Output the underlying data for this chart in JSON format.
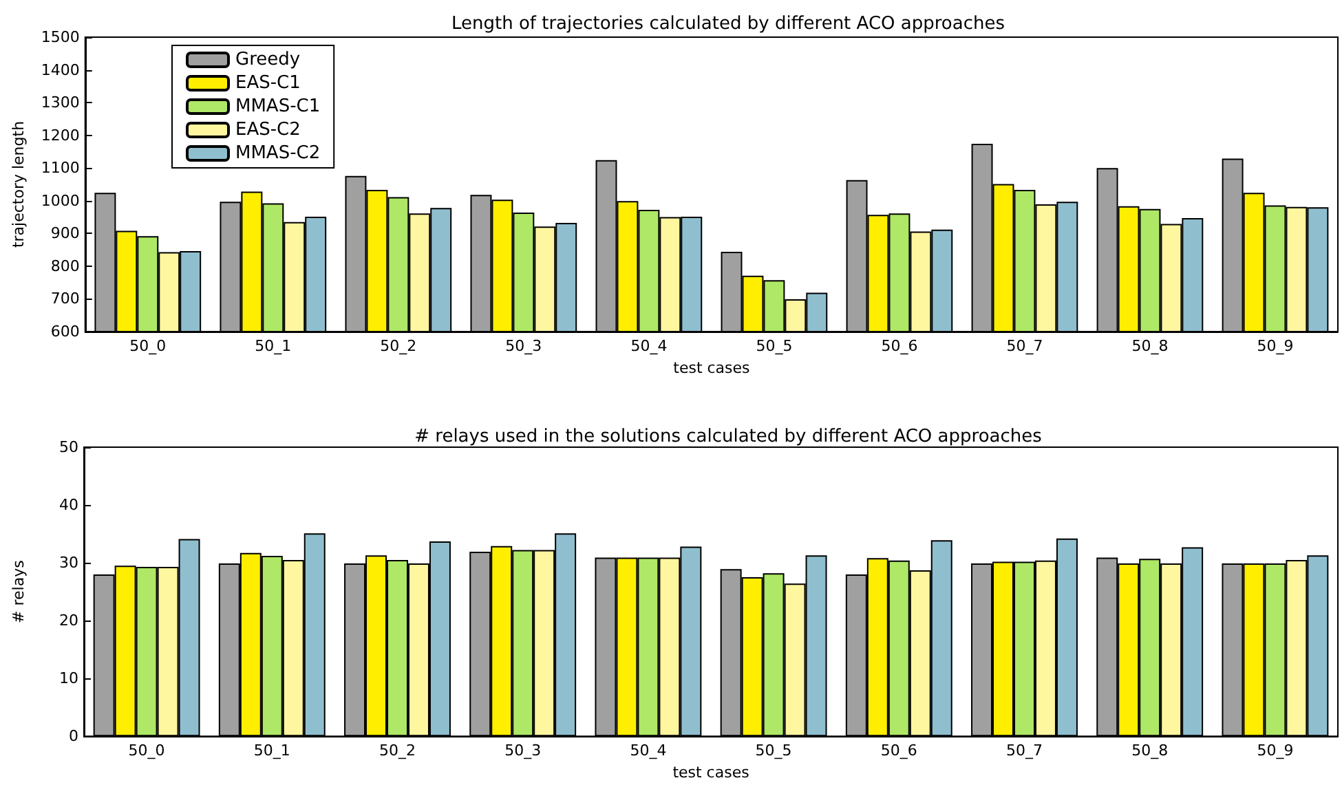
{
  "chart_data": [
    {
      "type": "bar",
      "title": "Length of trajectories calculated by different ACO approaches",
      "xlabel": "test cases",
      "ylabel": "trajectory length",
      "categories": [
        "50_0",
        "50_1",
        "50_2",
        "50_3",
        "50_4",
        "50_5",
        "50_6",
        "50_7",
        "50_8",
        "50_9"
      ],
      "series": [
        {
          "name": "Greedy",
          "color": "#a0a0a0",
          "values": [
            1024,
            997,
            1076,
            1018,
            1124,
            844,
            1063,
            1174,
            1100,
            1129
          ]
        },
        {
          "name": "EAS-C1",
          "color": "#ffee00",
          "values": [
            908,
            1028,
            1033,
            1003,
            999,
            771,
            957,
            1051,
            983,
            1024
          ]
        },
        {
          "name": "MMAS-C1",
          "color": "#aee866",
          "values": [
            892,
            992,
            1011,
            964,
            972,
            757,
            961,
            1033,
            975,
            986
          ]
        },
        {
          "name": "EAS-C2",
          "color": "#fff6a0",
          "values": [
            843,
            935,
            961,
            921,
            950,
            699,
            906,
            989,
            929,
            981
          ]
        },
        {
          "name": "MMAS-C2",
          "color": "#8fbfcf",
          "values": [
            846,
            951,
            978,
            932,
            951,
            719,
            912,
            997,
            947,
            980
          ]
        }
      ],
      "ylim": [
        600,
        1500
      ],
      "yticks": [
        600,
        700,
        800,
        900,
        1000,
        1100,
        1200,
        1300,
        1400,
        1500
      ],
      "legend": "top left",
      "grid": false
    },
    {
      "type": "bar",
      "title": "# relays used in the solutions calculated by different ACO approaches",
      "xlabel": "test cases",
      "ylabel": "# relays",
      "categories": [
        "50_0",
        "50_1",
        "50_2",
        "50_3",
        "50_4",
        "50_5",
        "50_6",
        "50_7",
        "50_8",
        "50_9"
      ],
      "series": [
        {
          "color": "#a0a0a0",
          "values": [
            28.0,
            29.9,
            29.9,
            31.9,
            30.9,
            28.9,
            28.0,
            29.9,
            30.9,
            29.9
          ]
        },
        {
          "color": "#ffee00",
          "values": [
            29.5,
            31.7,
            31.3,
            32.9,
            30.9,
            27.5,
            30.8,
            30.2,
            29.9,
            29.9
          ]
        },
        {
          "color": "#aee866",
          "values": [
            29.3,
            31.2,
            30.5,
            32.2,
            30.9,
            28.2,
            30.4,
            30.2,
            30.7,
            29.9
          ]
        },
        {
          "color": "#fff6a0",
          "values": [
            29.3,
            30.5,
            29.9,
            32.2,
            30.9,
            26.4,
            28.7,
            30.4,
            29.9,
            30.5
          ]
        },
        {
          "color": "#8fbfcf",
          "values": [
            34.1,
            35.1,
            33.7,
            35.1,
            32.8,
            31.3,
            33.9,
            34.2,
            32.7,
            31.3
          ]
        }
      ],
      "ylim": [
        0,
        50
      ],
      "yticks": [
        0,
        10,
        20,
        30,
        40,
        50
      ],
      "legend": false,
      "grid": false
    }
  ]
}
